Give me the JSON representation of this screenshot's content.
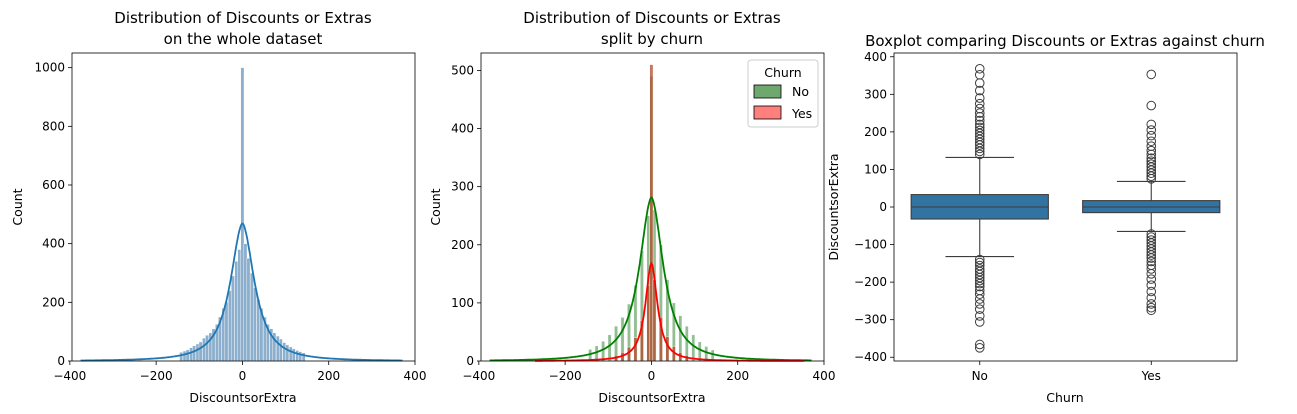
{
  "chart_data": [
    {
      "type": "histogram",
      "title_lines": [
        "Distribution of Discounts or Extras",
        "on the whole dataset"
      ],
      "xlabel": "DiscountsorExtra",
      "ylabel": "Count",
      "xlim": [
        -395,
        400
      ],
      "ylim": [
        0,
        1050
      ],
      "xticks": [
        -400,
        -200,
        0,
        200,
        400
      ],
      "yticks": [
        0,
        200,
        400,
        600,
        800,
        1000
      ],
      "bar_color": "#5b8db8",
      "kde_color": "#1f77b4",
      "bin_width": 7.5,
      "bins": [
        {
          "x": -142,
          "count": 30
        },
        {
          "x": -134,
          "count": 34
        },
        {
          "x": -127,
          "count": 38
        },
        {
          "x": -119,
          "count": 45
        },
        {
          "x": -112,
          "count": 52
        },
        {
          "x": -104,
          "count": 58
        },
        {
          "x": -97,
          "count": 65
        },
        {
          "x": -89,
          "count": 78
        },
        {
          "x": -82,
          "count": 88
        },
        {
          "x": -74,
          "count": 96
        },
        {
          "x": -67,
          "count": 110
        },
        {
          "x": -59,
          "count": 125
        },
        {
          "x": -52,
          "count": 150
        },
        {
          "x": -44,
          "count": 180
        },
        {
          "x": -37,
          "count": 200
        },
        {
          "x": -29,
          "count": 240
        },
        {
          "x": -22,
          "count": 290
        },
        {
          "x": -14,
          "count": 340
        },
        {
          "x": -7,
          "count": 380
        },
        {
          "x": 0,
          "count": 1000
        },
        {
          "x": 7,
          "count": 400
        },
        {
          "x": 14,
          "count": 350
        },
        {
          "x": 22,
          "count": 300
        },
        {
          "x": 29,
          "count": 250
        },
        {
          "x": 37,
          "count": 210
        },
        {
          "x": 44,
          "count": 180
        },
        {
          "x": 52,
          "count": 150
        },
        {
          "x": 59,
          "count": 125
        },
        {
          "x": 67,
          "count": 110
        },
        {
          "x": 74,
          "count": 96
        },
        {
          "x": 82,
          "count": 85
        },
        {
          "x": 89,
          "count": 75
        },
        {
          "x": 97,
          "count": 63
        },
        {
          "x": 104,
          "count": 55
        },
        {
          "x": 112,
          "count": 48
        },
        {
          "x": 119,
          "count": 42
        },
        {
          "x": 127,
          "count": 36
        },
        {
          "x": 134,
          "count": 32
        },
        {
          "x": 142,
          "count": 28
        }
      ],
      "kde": {
        "peak": 470,
        "scale": 45,
        "range": [
          -375,
          372
        ]
      }
    },
    {
      "type": "histogram",
      "title_lines": [
        "Distribution of Discounts or Extras",
        "split by churn"
      ],
      "xlabel": "DiscountsorExtra",
      "ylabel": "Count",
      "xlim": [
        -395,
        400
      ],
      "ylim": [
        0,
        530
      ],
      "xticks": [
        -400,
        -200,
        0,
        200,
        400
      ],
      "yticks": [
        0,
        100,
        200,
        300,
        400,
        500
      ],
      "legend": {
        "title": "Churn",
        "placement": "top-right"
      },
      "bin_width": 7.5,
      "series": [
        {
          "name": "No",
          "bar_color": "#6fa86f",
          "kde_color": "#008000",
          "bins": [
            {
              "x": -142,
              "count": 20
            },
            {
              "x": -127,
              "count": 26
            },
            {
              "x": -112,
              "count": 34
            },
            {
              "x": -97,
              "count": 45
            },
            {
              "x": -82,
              "count": 60
            },
            {
              "x": -67,
              "count": 75
            },
            {
              "x": -52,
              "count": 98
            },
            {
              "x": -37,
              "count": 130
            },
            {
              "x": -22,
              "count": 190
            },
            {
              "x": -7,
              "count": 250
            },
            {
              "x": 0,
              "count": 490
            },
            {
              "x": 7,
              "count": 260
            },
            {
              "x": 22,
              "count": 200
            },
            {
              "x": 37,
              "count": 140
            },
            {
              "x": 52,
              "count": 100
            },
            {
              "x": 67,
              "count": 78
            },
            {
              "x": 82,
              "count": 60
            },
            {
              "x": 97,
              "count": 45
            },
            {
              "x": 112,
              "count": 33
            },
            {
              "x": 127,
              "count": 25
            },
            {
              "x": 142,
              "count": 19
            }
          ],
          "kde": {
            "peak": 282,
            "scale": 45,
            "range": [
              -375,
              372
            ]
          }
        },
        {
          "name": "Yes",
          "bar_color": "#b04a2a",
          "kde_color": "#ff0000",
          "bins": [
            {
              "x": -82,
              "count": 10
            },
            {
              "x": -67,
              "count": 15
            },
            {
              "x": -52,
              "count": 24
            },
            {
              "x": -37,
              "count": 40
            },
            {
              "x": -22,
              "count": 70
            },
            {
              "x": -7,
              "count": 130
            },
            {
              "x": 0,
              "count": 510
            },
            {
              "x": 7,
              "count": 140
            },
            {
              "x": 22,
              "count": 75
            },
            {
              "x": 37,
              "count": 42
            },
            {
              "x": 52,
              "count": 25
            },
            {
              "x": 67,
              "count": 15
            },
            {
              "x": 82,
              "count": 10
            }
          ],
          "kde": {
            "peak": 168,
            "scale": 22,
            "range": [
              -270,
              355
            ]
          }
        }
      ]
    },
    {
      "type": "boxplot",
      "title": "Boxplot comparing Discounts or Extras against churn",
      "xlabel": "Churn",
      "ylabel": "DiscountsorExtra",
      "categories": [
        "No",
        "Yes"
      ],
      "ylim": [
        -410,
        410
      ],
      "yticks": [
        -400,
        -300,
        -200,
        -100,
        0,
        100,
        200,
        300,
        400
      ],
      "box_color": "#3274a1",
      "boxes": [
        {
          "category": "No",
          "q1": -32,
          "median": 0,
          "q3": 33,
          "whisker_low": -132,
          "whisker_high": 132,
          "outliers": [
            140,
            148,
            156,
            165,
            172,
            180,
            188,
            196,
            204,
            212,
            220,
            230,
            240,
            250,
            262,
            275,
            290,
            310,
            330,
            352,
            368,
            -140,
            -148,
            -156,
            -165,
            -172,
            -180,
            -188,
            -196,
            -204,
            -212,
            -222,
            -232,
            -245,
            -258,
            -272,
            -290,
            -306,
            -366,
            -375
          ]
        },
        {
          "category": "Yes",
          "q1": -15,
          "median": 0,
          "q3": 17,
          "whisker_low": -65,
          "whisker_high": 68,
          "outliers": [
            75,
            82,
            90,
            98,
            106,
            114,
            122,
            130,
            140,
            150,
            162,
            175,
            190,
            205,
            220,
            270,
            353,
            -72,
            -80,
            -88,
            -96,
            -104,
            -112,
            -120,
            -128,
            -136,
            -145,
            -155,
            -165,
            -178,
            -192,
            -208,
            -225,
            -242,
            -258,
            -268,
            -275
          ]
        }
      ]
    }
  ]
}
